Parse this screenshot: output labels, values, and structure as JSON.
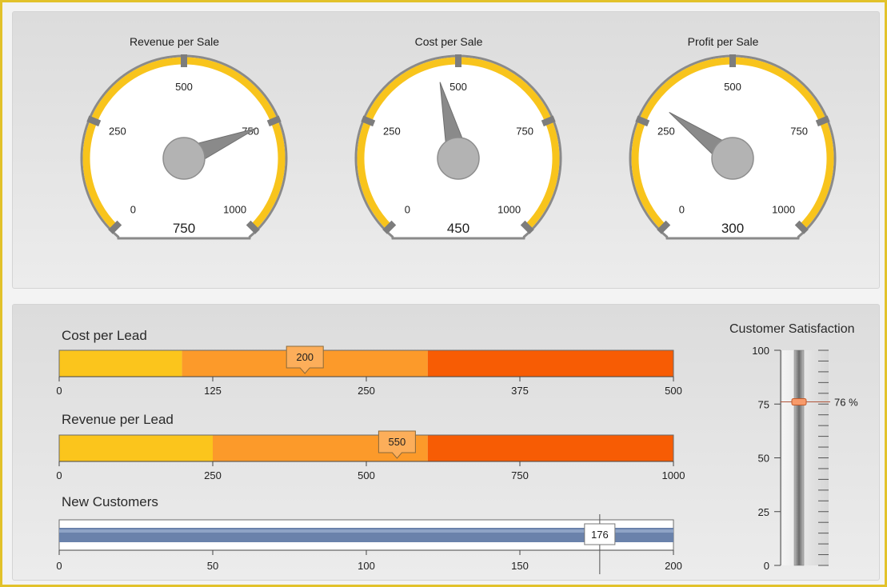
{
  "colors": {
    "gauge_ring": "#f8c41c",
    "gauge_rim": "#8a8a8a",
    "segment_low": "#fbc51c",
    "segment_mid": "#fc9a2a",
    "segment_high": "#f75c04",
    "progress_fill": "#6a82ab",
    "frame": "#e2c22b"
  },
  "gauges": [
    {
      "title": "Revenue per Sale",
      "value": 750,
      "display": "750",
      "min": 0,
      "max": 1000,
      "ticks": [
        "0",
        "250",
        "500",
        "750",
        "1000"
      ]
    },
    {
      "title": "Cost per Sale",
      "value": 450,
      "display": "450",
      "min": 0,
      "max": 1000,
      "ticks": [
        "0",
        "250",
        "500",
        "750",
        "1000"
      ]
    },
    {
      "title": "Profit per Sale",
      "value": 300,
      "display": "300",
      "min": 0,
      "max": 1000,
      "ticks": [
        "0",
        "250",
        "500",
        "750",
        "1000"
      ]
    }
  ],
  "bars": [
    {
      "title": "Cost per Lead",
      "value": 200,
      "display": "200",
      "min": 0,
      "max": 500,
      "ticks": [
        "0",
        "125",
        "250",
        "375",
        "500"
      ],
      "segments": [
        100,
        300,
        500
      ]
    },
    {
      "title": "Revenue per Lead",
      "value": 550,
      "display": "550",
      "min": 0,
      "max": 1000,
      "ticks": [
        "0",
        "250",
        "500",
        "750",
        "1000"
      ],
      "segments": [
        250,
        600,
        1000
      ]
    }
  ],
  "progress": {
    "title": "New Customers",
    "value": 176,
    "display": "176",
    "min": 0,
    "max": 200,
    "ticks": [
      "0",
      "50",
      "100",
      "150",
      "200"
    ]
  },
  "slider": {
    "title": "Customer Satisfaction",
    "value": 76,
    "display": "76 %",
    "min": 0,
    "max": 100,
    "ticks": [
      "0",
      "25",
      "50",
      "75",
      "100"
    ]
  }
}
